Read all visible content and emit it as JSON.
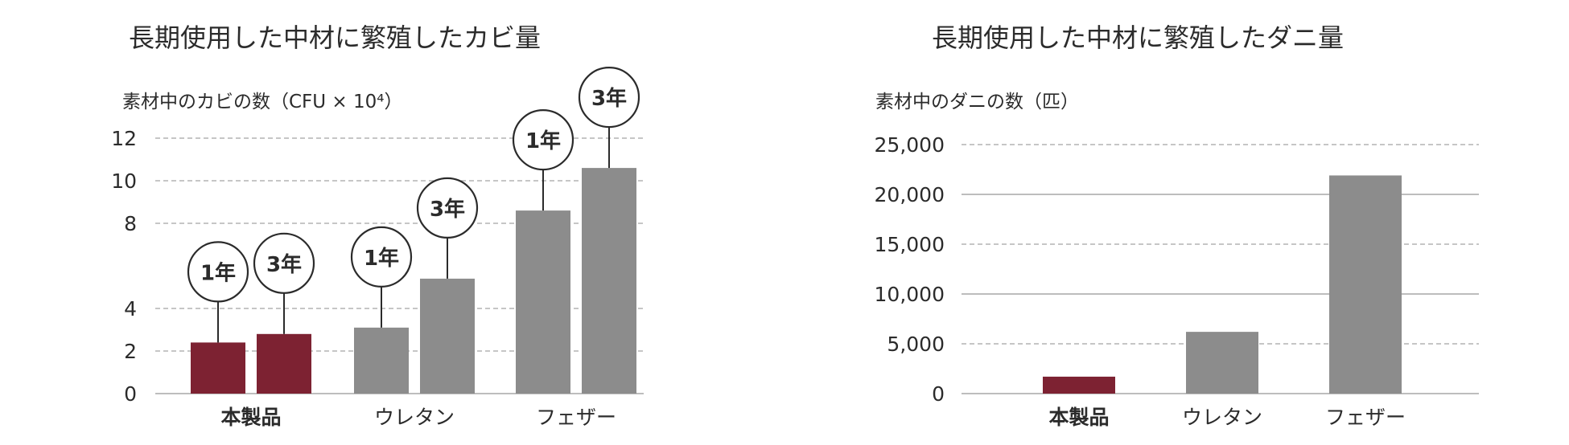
{
  "colors": {
    "highlight": "#7d2232",
    "base": "#8c8c8c",
    "axis": "#bdbdbd",
    "text": "#2b2b2b"
  },
  "chart_data": [
    {
      "type": "bar",
      "title": "長期使用した中材に繁殖したカビ量",
      "ylabel": "素材中のカビの数（CFU × 10⁴）",
      "ylim": [
        0,
        12
      ],
      "yticks": [
        "0",
        "2",
        "4",
        "8",
        "10",
        "12"
      ],
      "grid": true,
      "categories": [
        "本製品",
        "ウレタン",
        "フェザー"
      ],
      "highlight_category": "本製品",
      "series_labels": [
        "1年",
        "3年"
      ],
      "values": [
        [
          2.4,
          2.8
        ],
        [
          3.1,
          5.4
        ],
        [
          8.6,
          10.6
        ]
      ]
    },
    {
      "type": "bar",
      "title": "長期使用した中材に繁殖したダニ量",
      "ylabel": "素材中のダニの数（匹）",
      "ylim": [
        0,
        25000
      ],
      "yticks": [
        "0",
        "5,000",
        "10,000",
        "15,000",
        "20,000",
        "25,000"
      ],
      "grid": true,
      "categories": [
        "本製品",
        "ウレタン",
        "フェザー"
      ],
      "highlight_category": "本製品",
      "values": [
        1700,
        6200,
        21900
      ]
    }
  ]
}
